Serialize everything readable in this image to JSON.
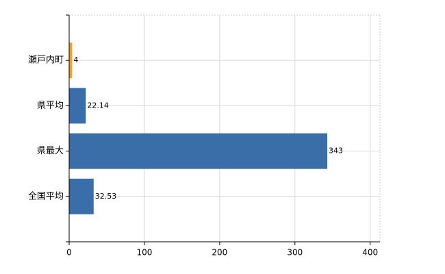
{
  "chart_data": {
    "type": "bar",
    "orientation": "horizontal",
    "categories": [
      "瀬戸内町",
      "県平均",
      "県最大",
      "全国平均"
    ],
    "values": [
      4,
      22.14,
      343,
      32.53
    ],
    "colors": [
      "#f0a030",
      "#3a6ea8",
      "#3a6ea8",
      "#3a6ea8"
    ],
    "xlim": [
      0,
      413
    ],
    "xticks": [
      0,
      100,
      200,
      300,
      400
    ],
    "grid": true
  }
}
